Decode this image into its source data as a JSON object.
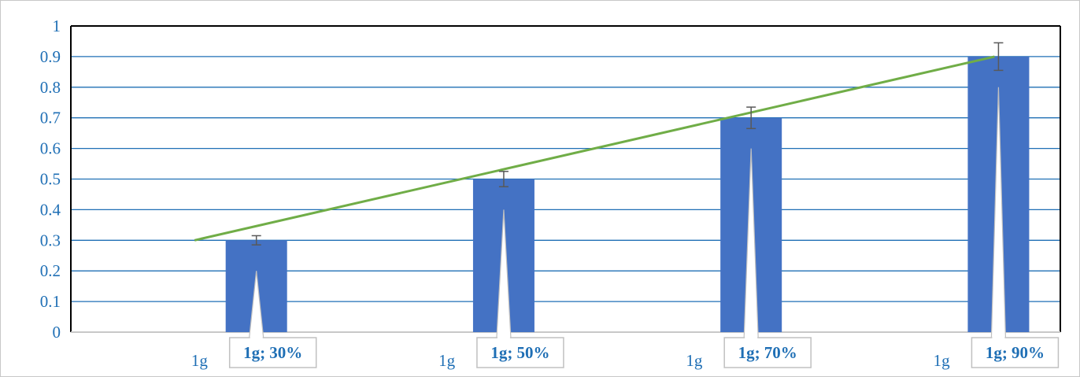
{
  "chart_data": {
    "type": "bar",
    "categories": [
      "1g",
      "1g",
      "1g",
      "1g"
    ],
    "values": [
      0.3,
      0.5,
      0.7,
      0.9
    ],
    "error_bars": [
      0.015,
      0.025,
      0.035,
      0.045
    ],
    "data_labels": [
      "1g; 30%",
      "1g; 50%",
      "1g; 70%",
      "1g; 90%"
    ],
    "trend_line": {
      "from": [
        0,
        0.3
      ],
      "to": [
        3,
        0.9
      ]
    },
    "ylim": [
      0,
      1
    ],
    "yticks": [
      "0",
      "0.1",
      "0.2",
      "0.3",
      "0.4",
      "0.5",
      "0.6",
      "0.7",
      "0.8",
      "0.9",
      "1"
    ],
    "grid": true,
    "title": "",
    "xlabel": "",
    "ylabel": ""
  },
  "colors": {
    "bar": "#4472c4",
    "trend": "#70ad47",
    "grid": "#1f6fb5",
    "text": "#1f6fb5",
    "error": "#595959"
  }
}
